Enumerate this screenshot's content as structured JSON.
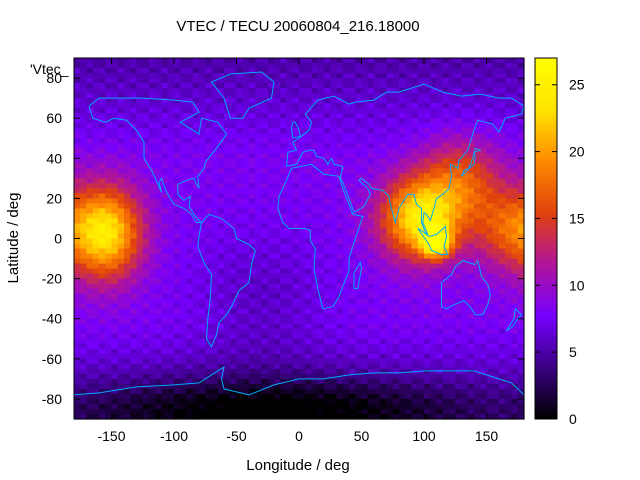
{
  "chart_data": {
    "type": "heatmap",
    "title": "VTEC / TECU 20060804_216.18000",
    "xlabel": "Longitude / deg",
    "ylabel": "Latitude / deg",
    "key_label": "'Vtec_",
    "xlim": [
      -180,
      180
    ],
    "ylim": [
      -90,
      90
    ],
    "x_ticks": [
      -150,
      -100,
      -50,
      0,
      50,
      100,
      150
    ],
    "y_ticks": [
      -80,
      -60,
      -40,
      -20,
      0,
      20,
      40,
      60,
      80
    ],
    "colorbar": {
      "range": [
        0,
        27
      ],
      "ticks": [
        0,
        5,
        10,
        15,
        20,
        25
      ],
      "palette": [
        "#000000",
        "#3a0082",
        "#7600ff",
        "#b0149a",
        "#e0420c",
        "#ff8a00",
        "#ffe400",
        "#ffff00"
      ]
    },
    "grid_step_deg": {
      "lon": 5,
      "lat": 2.5
    },
    "background_tec": 8,
    "features": [
      {
        "name": "pacific-maximum",
        "lon": -155,
        "lat": 3,
        "peak": 24,
        "lon_sigma": 20,
        "lat_sigma": 16
      },
      {
        "name": "asia-maximum",
        "lon": 97,
        "lat": 10,
        "peak": 24,
        "lon_sigma": 22,
        "lat_sigma": 14
      },
      {
        "name": "indonesia-maximum",
        "lon": 110,
        "lat": -2,
        "peak": 23,
        "lon_sigma": 8,
        "lat_sigma": 5
      },
      {
        "name": "east-asia-ridge",
        "lon": 130,
        "lat": 28,
        "peak": 16,
        "lon_sigma": 22,
        "lat_sigma": 15
      },
      {
        "name": "west-pacific-band",
        "lon": 165,
        "lat": 5,
        "peak": 15,
        "lon_sigma": 18,
        "lat_sigma": 14
      },
      {
        "name": "antarctic-minimum",
        "lon": -20,
        "lat": -85,
        "peak": -6,
        "lon_sigma": 120,
        "lat_sigma": 12
      },
      {
        "name": "south-atlantic-dip",
        "lon": -30,
        "lat": -30,
        "peak": -2,
        "lon_sigma": 40,
        "lat_sigma": 25
      }
    ],
    "coastline_color": "#00a8ff"
  }
}
